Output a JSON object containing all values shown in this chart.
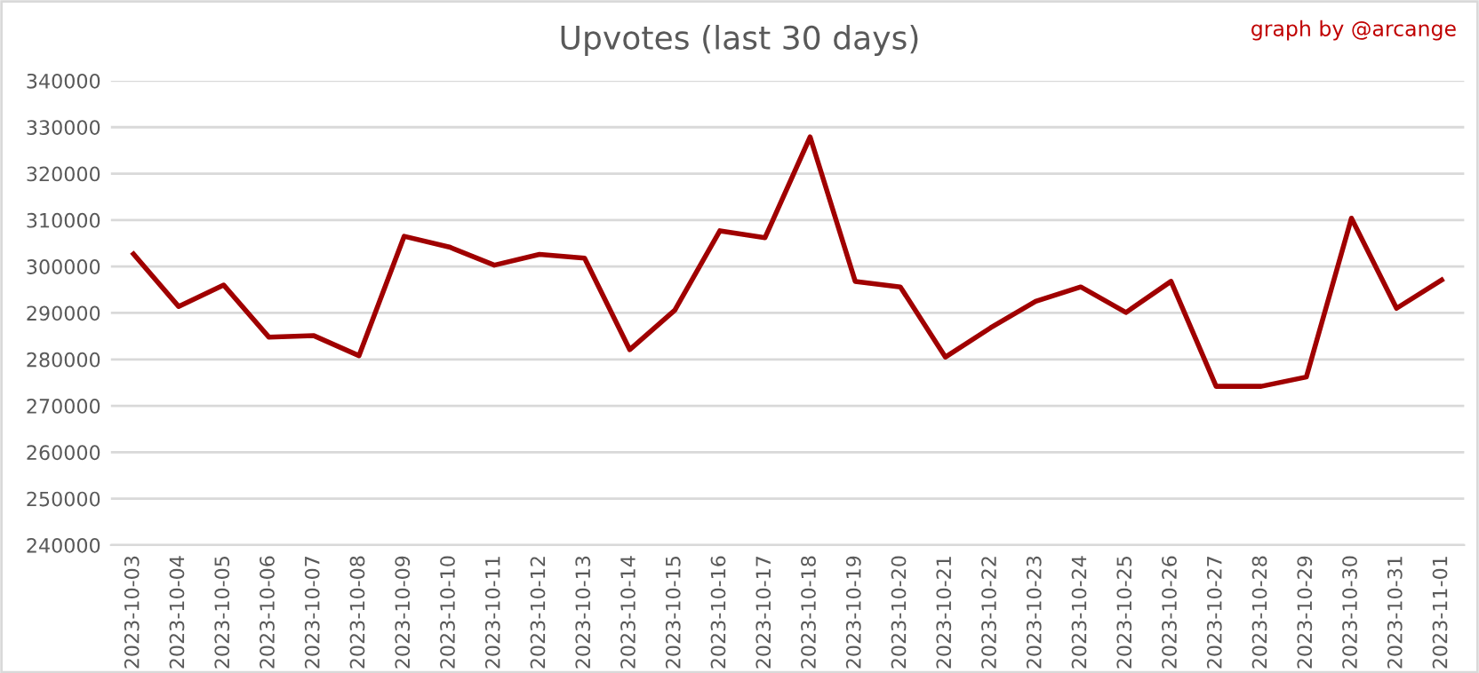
{
  "chart_data": {
    "type": "line",
    "title": "Upvotes (last 30 days)",
    "annotations": [
      "graph by @arcange"
    ],
    "categories": [
      "2023-10-03",
      "2023-10-04",
      "2023-10-05",
      "2023-10-06",
      "2023-10-07",
      "2023-10-08",
      "2023-10-09",
      "2023-10-10",
      "2023-10-11",
      "2023-10-12",
      "2023-10-13",
      "2023-10-14",
      "2023-10-15",
      "2023-10-16",
      "2023-10-17",
      "2023-10-18",
      "2023-10-19",
      "2023-10-20",
      "2023-10-21",
      "2023-10-22",
      "2023-10-23",
      "2023-10-24",
      "2023-10-25",
      "2023-10-26",
      "2023-10-27",
      "2023-10-28",
      "2023-10-29",
      "2023-10-30",
      "2023-10-31",
      "2023-11-01"
    ],
    "series": [
      {
        "color": "#a00000",
        "values": [
          302700,
          291400,
          296000,
          284800,
          285100,
          280800,
          306500,
          304200,
          300300,
          302600,
          301800,
          282100,
          290600,
          307700,
          306200,
          327900,
          296800,
          295600,
          280500,
          286800,
          292500,
          295600,
          290100,
          296800,
          274200,
          274200,
          276200,
          310400,
          291000,
          297100
        ]
      }
    ],
    "ylim": [
      240000,
      340000
    ],
    "yticks": [
      240000,
      250000,
      260000,
      270000,
      280000,
      290000,
      300000,
      310000,
      320000,
      330000,
      340000
    ],
    "grid": "y",
    "legend": false,
    "marker": "none",
    "line_style": "solid"
  }
}
